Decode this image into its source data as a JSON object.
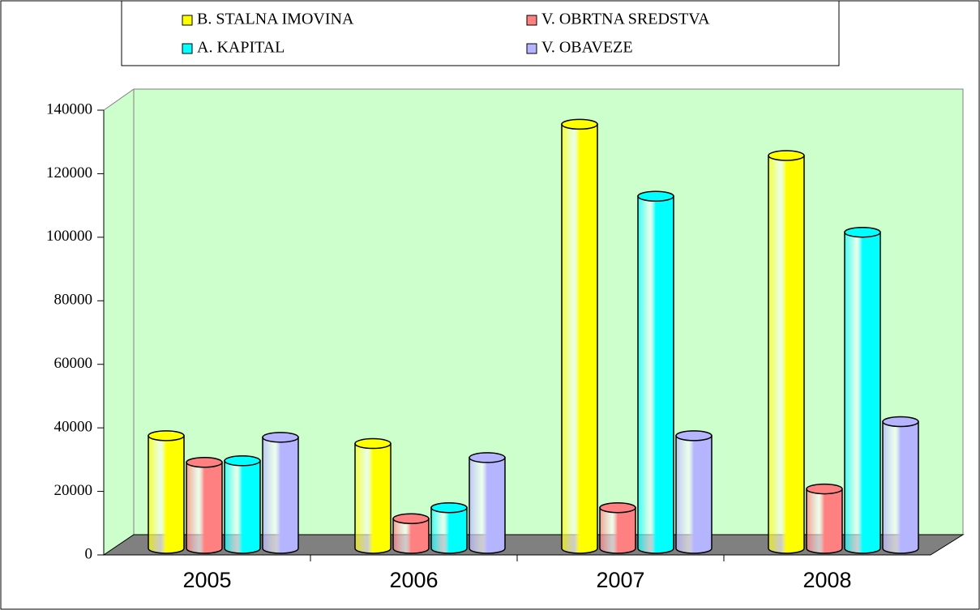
{
  "chart_data": {
    "type": "bar",
    "categories": [
      "2005",
      "2006",
      "2007",
      "2008"
    ],
    "series": [
      {
        "name": "B. STALNA IMOVINA",
        "color": "#ffff00",
        "values": [
          36000,
          33500,
          135500,
          125500
        ]
      },
      {
        "name": "V. OBRTNA SREDSTVA",
        "color": "#ff8080",
        "values": [
          27500,
          9500,
          13000,
          19000
        ]
      },
      {
        "name": "A. KAPITAL",
        "color": "#00ffff",
        "values": [
          28000,
          13000,
          112500,
          101000
        ]
      },
      {
        "name": "V. OBAVEZE",
        "color": "#b4b4ff",
        "values": [
          35500,
          29000,
          36000,
          40500
        ]
      }
    ],
    "ylim": [
      0,
      140000
    ],
    "yticks": [
      0,
      20000,
      40000,
      60000,
      80000,
      100000,
      120000,
      140000
    ],
    "grid": false
  }
}
